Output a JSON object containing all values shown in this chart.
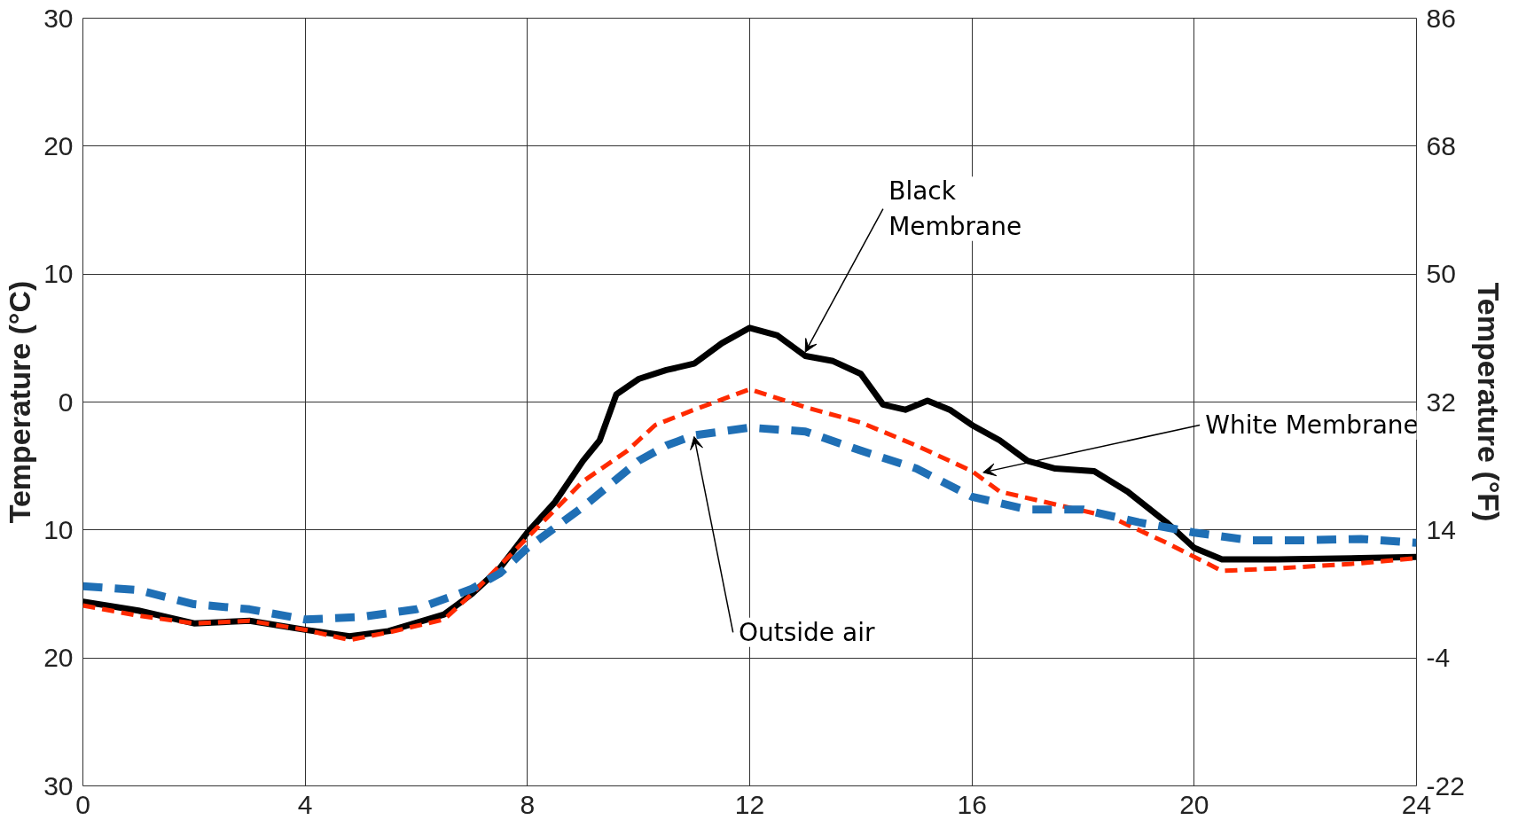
{
  "chart_data": {
    "type": "line",
    "ylabel": "Temperature (°C)",
    "y2label": "Temperature (°F)",
    "xlim": [
      0,
      24
    ],
    "xticks": [
      0,
      4,
      8,
      12,
      16,
      20,
      24
    ],
    "ylim": [
      -30,
      30
    ],
    "yticks": [
      {
        "value": -30,
        "label": "30"
      },
      {
        "value": -20,
        "label": "20"
      },
      {
        "value": -10,
        "label": "10"
      },
      0,
      10,
      20,
      30
    ],
    "y2lim": [
      -22,
      86
    ],
    "y2ticks": [
      -22,
      -4,
      14,
      32,
      50,
      68,
      86
    ],
    "grid": true,
    "marker": "none",
    "series": [
      {
        "color": "#000000",
        "line_style": "solid",
        "x": [
          0,
          1,
          2,
          3,
          4,
          4.8,
          5.5,
          6.5,
          7,
          7.5,
          8,
          8.5,
          9,
          9.3,
          9.6,
          10,
          10.5,
          11,
          11.5,
          12,
          12.5,
          13,
          13.5,
          14,
          14.4,
          14.8,
          15.2,
          15.6,
          16,
          16.5,
          17,
          17.5,
          18.2,
          18.8,
          19.5,
          20,
          20.5,
          21.5,
          23,
          24
        ],
        "values": [
          -15.6,
          -16.3,
          -17.3,
          -17.1,
          -17.8,
          -18.3,
          -17.9,
          -16.6,
          -15,
          -13,
          -10.2,
          -7.8,
          -4.6,
          -3,
          0.6,
          1.8,
          2.5,
          3,
          4.6,
          5.8,
          5.2,
          3.6,
          3.2,
          2.2,
          -0.2,
          -0.6,
          0.1,
          -0.6,
          -1.8,
          -3,
          -4.6,
          -5.2,
          -5.4,
          -7,
          -9.4,
          -11.4,
          -12.3,
          -12.3,
          -12.2,
          -12.1
        ]
      },
      {
        "color": "#ff2a00",
        "line_style": "dashed",
        "x": [
          0,
          1,
          2,
          3,
          4,
          4.8,
          5.5,
          6.5,
          7,
          8,
          9,
          9.8,
          10.3,
          11,
          11.5,
          12,
          13,
          14,
          15,
          16,
          16.5,
          17.5,
          18.5,
          19.5,
          20.5,
          21.5,
          23,
          24
        ],
        "values": [
          -15.9,
          -16.7,
          -17.3,
          -17.1,
          -17.8,
          -18.6,
          -18,
          -17,
          -15,
          -10.6,
          -6.2,
          -3.8,
          -1.8,
          -0.6,
          0.2,
          1,
          -0.4,
          -1.6,
          -3.4,
          -5.4,
          -7,
          -8,
          -9,
          -11,
          -13.2,
          -13,
          -12.6,
          -12.2
        ]
      },
      {
        "color": "#1f6fb5",
        "line_style": "dashed",
        "x": [
          0,
          1,
          2,
          3,
          4,
          5,
          6,
          7,
          7.5,
          8,
          9,
          10,
          10.5,
          11,
          12,
          13,
          14,
          15,
          16,
          17,
          18,
          19,
          20,
          21,
          22,
          23,
          24
        ],
        "values": [
          -14.4,
          -14.7,
          -15.8,
          -16.2,
          -17,
          -16.8,
          -16.2,
          -14.6,
          -13.4,
          -11.4,
          -8.2,
          -4.6,
          -3.4,
          -2.6,
          -2,
          -2.3,
          -3.8,
          -5.2,
          -7.4,
          -8.4,
          -8.4,
          -9.4,
          -10.2,
          -10.8,
          -10.8,
          -10.7,
          -11
        ]
      }
    ],
    "annotations": [
      {
        "text": "Black\nMembrane",
        "x": 13,
        "y": 3.6
      },
      {
        "text": "White Membrane",
        "x": 16.2,
        "y": -5.8
      },
      {
        "text": "Outside air",
        "x": 11,
        "y": -3
      }
    ]
  }
}
